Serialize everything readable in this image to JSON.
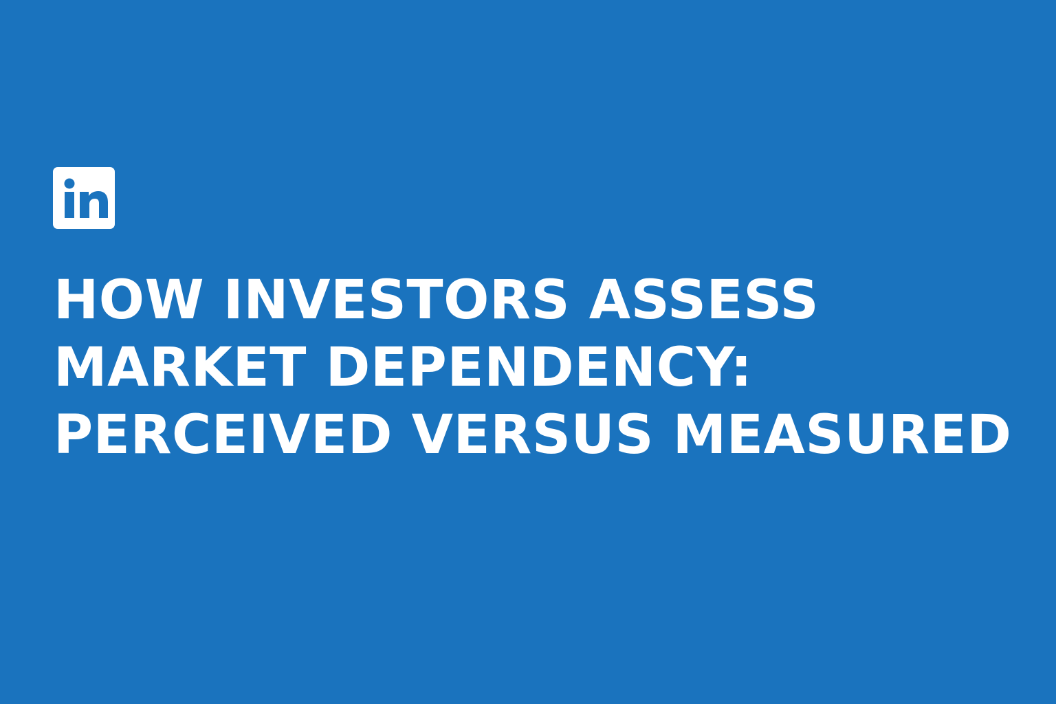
{
  "brand": {
    "logo_text": "in",
    "logo_icon": "linkedin-icon"
  },
  "headline": {
    "line1": "HOW INVESTORS ASSESS",
    "line2": "MARKET DEPENDENCY:",
    "line3": "PERCEIVED VERSUS MEASURED"
  },
  "colors": {
    "background": "#1a73be",
    "text": "#ffffff",
    "logo_box": "#ffffff"
  }
}
